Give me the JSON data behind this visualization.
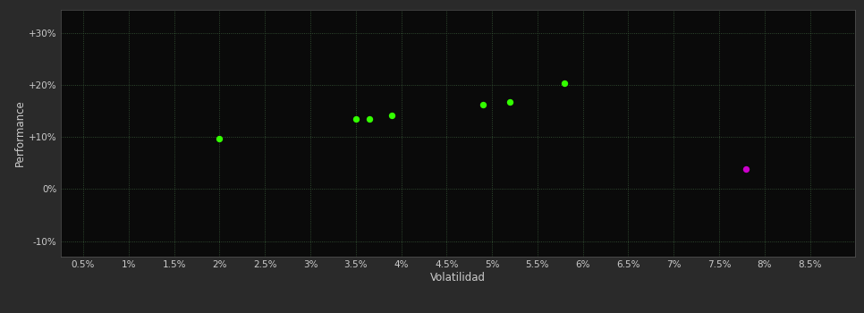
{
  "background_color": "#2a2a2a",
  "plot_bg_color": "#0a0a0a",
  "grid_color": "#3a5a3a",
  "grid_style": ":",
  "xlabel": "Volatilidad",
  "ylabel": "Performance",
  "xlabel_color": "#cccccc",
  "ylabel_color": "#cccccc",
  "tick_color": "#cccccc",
  "xlim": [
    0.0025,
    0.09
  ],
  "ylim": [
    -0.13,
    0.345
  ],
  "xticks": [
    0.005,
    0.01,
    0.015,
    0.02,
    0.025,
    0.03,
    0.035,
    0.04,
    0.045,
    0.05,
    0.055,
    0.06,
    0.065,
    0.07,
    0.075,
    0.08,
    0.085
  ],
  "yticks": [
    -0.1,
    0.0,
    0.1,
    0.2,
    0.3
  ],
  "ytick_labels": [
    "-10%",
    "0%",
    "+10%",
    "+20%",
    "+30%"
  ],
  "xtick_labels": [
    "0.5%",
    "1%",
    "1.5%",
    "2%",
    "2.5%",
    "3%",
    "3.5%",
    "4%",
    "4.5%",
    "5%",
    "5.5%",
    "6%",
    "6.5%",
    "7%",
    "7.5%",
    "8%",
    "8.5%"
  ],
  "green_points": [
    [
      0.02,
      0.097
    ],
    [
      0.035,
      0.134
    ],
    [
      0.0365,
      0.134
    ],
    [
      0.039,
      0.141
    ],
    [
      0.049,
      0.162
    ],
    [
      0.052,
      0.168
    ],
    [
      0.058,
      0.204
    ]
  ],
  "magenta_points": [
    [
      0.078,
      0.038
    ]
  ],
  "green_color": "#33ff00",
  "magenta_color": "#cc00cc",
  "marker_size": 28
}
